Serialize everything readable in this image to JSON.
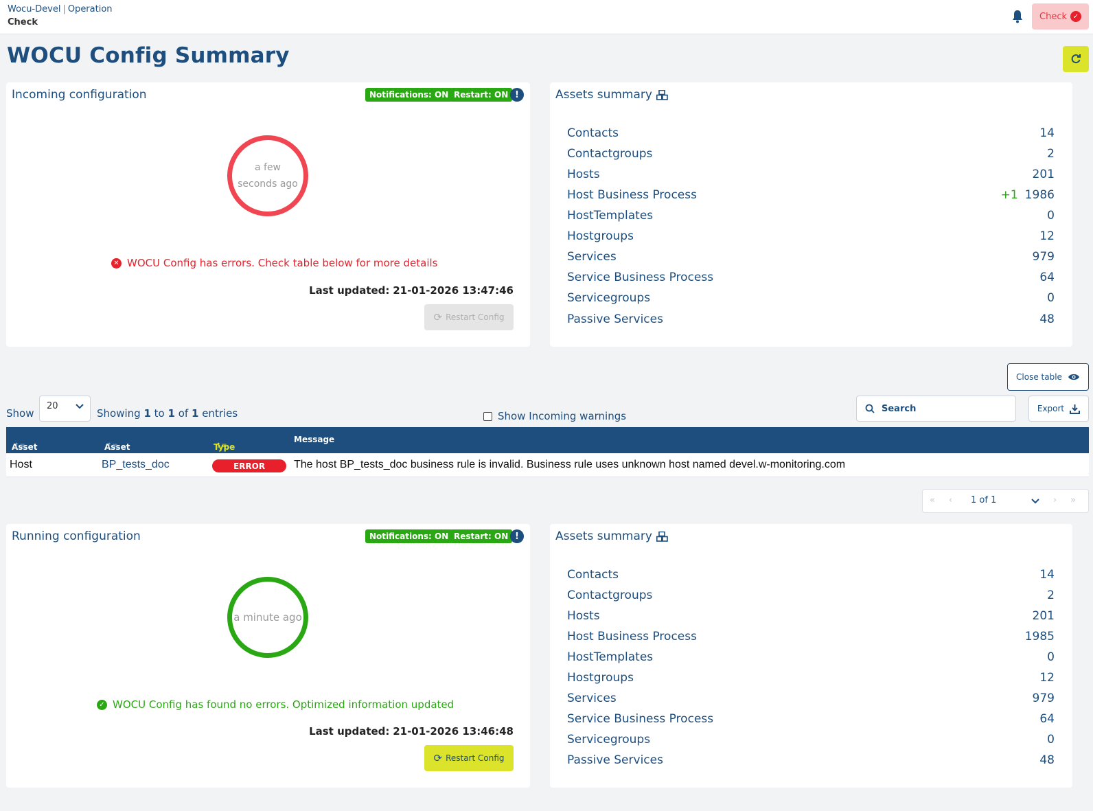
{
  "header": {
    "breadcrumb": [
      "Wocu-Devel",
      "Operation"
    ],
    "breadcrumb_sep": "|",
    "subtitle": "Check",
    "check_label": "Check"
  },
  "page": {
    "title": "WOCU Config Summary"
  },
  "incoming": {
    "title": "Incoming configuration",
    "notifications": "Notifications: ON",
    "restart": "Restart: ON",
    "ring_line1": "a few",
    "ring_line2": "seconds ago",
    "status": "WOCU Config has errors. Check table below for more details",
    "last_updated_label": "Last updated:",
    "last_updated_value": "21-01-2026 13:47:46",
    "restart_button": "Restart Config"
  },
  "running": {
    "title": "Running configuration",
    "notifications": "Notifications: ON",
    "restart": "Restart: ON",
    "ring_text": "a minute ago",
    "status": "WOCU Config has found no errors. Optimized information updated",
    "last_updated_label": "Last updated:",
    "last_updated_value": "21-01-2026 13:46:48",
    "restart_button": "Restart Config"
  },
  "assets_incoming": {
    "title": "Assets summary",
    "items": [
      {
        "label": "Contacts",
        "value": "14",
        "delta": ""
      },
      {
        "label": "Contactgroups",
        "value": "2",
        "delta": ""
      },
      {
        "label": "Hosts",
        "value": "201",
        "delta": ""
      },
      {
        "label": "Host Business Process",
        "value": "1986",
        "delta": "+1"
      },
      {
        "label": "HostTemplates",
        "value": "0",
        "delta": ""
      },
      {
        "label": "Hostgroups",
        "value": "12",
        "delta": ""
      },
      {
        "label": "Services",
        "value": "979",
        "delta": ""
      },
      {
        "label": "Service Business Process",
        "value": "64",
        "delta": ""
      },
      {
        "label": "Servicegroups",
        "value": "0",
        "delta": ""
      },
      {
        "label": "Passive Services",
        "value": "48",
        "delta": ""
      }
    ]
  },
  "assets_running": {
    "title": "Assets summary",
    "items": [
      {
        "label": "Contacts",
        "value": "14"
      },
      {
        "label": "Contactgroups",
        "value": "2"
      },
      {
        "label": "Hosts",
        "value": "201"
      },
      {
        "label": "Host Business Process",
        "value": "1985"
      },
      {
        "label": "HostTemplates",
        "value": "0"
      },
      {
        "label": "Hostgroups",
        "value": "12"
      },
      {
        "label": "Services",
        "value": "979"
      },
      {
        "label": "Service Business Process",
        "value": "64"
      },
      {
        "label": "Servicegroups",
        "value": "0"
      },
      {
        "label": "Passive Services",
        "value": "48"
      }
    ]
  },
  "table": {
    "close_label": "Close table",
    "show_label": "Show",
    "page_size": "20",
    "showing": {
      "prefix": "Showing",
      "from": "1",
      "to_word": "to",
      "to": "1",
      "of_word": "of",
      "total": "1",
      "suffix": "entries"
    },
    "warnings_label": "Show Incoming warnings",
    "search_placeholder": "Search",
    "export_label": "Export",
    "columns": [
      "Asset Type",
      "Asset",
      "Type",
      "Message"
    ],
    "rows": [
      {
        "asset_type": "Host",
        "asset": "BP_tests_doc",
        "type": "ERROR",
        "message": "The host BP_tests_doc business rule is invalid. Business rule uses unknown host named devel.w-monitoring.com"
      }
    ],
    "pager": "1 of 1"
  },
  "colors": {
    "primary": "#1d4e7e",
    "accent": "#dbe42a",
    "error": "#e8363f",
    "ok": "#2aa813"
  }
}
